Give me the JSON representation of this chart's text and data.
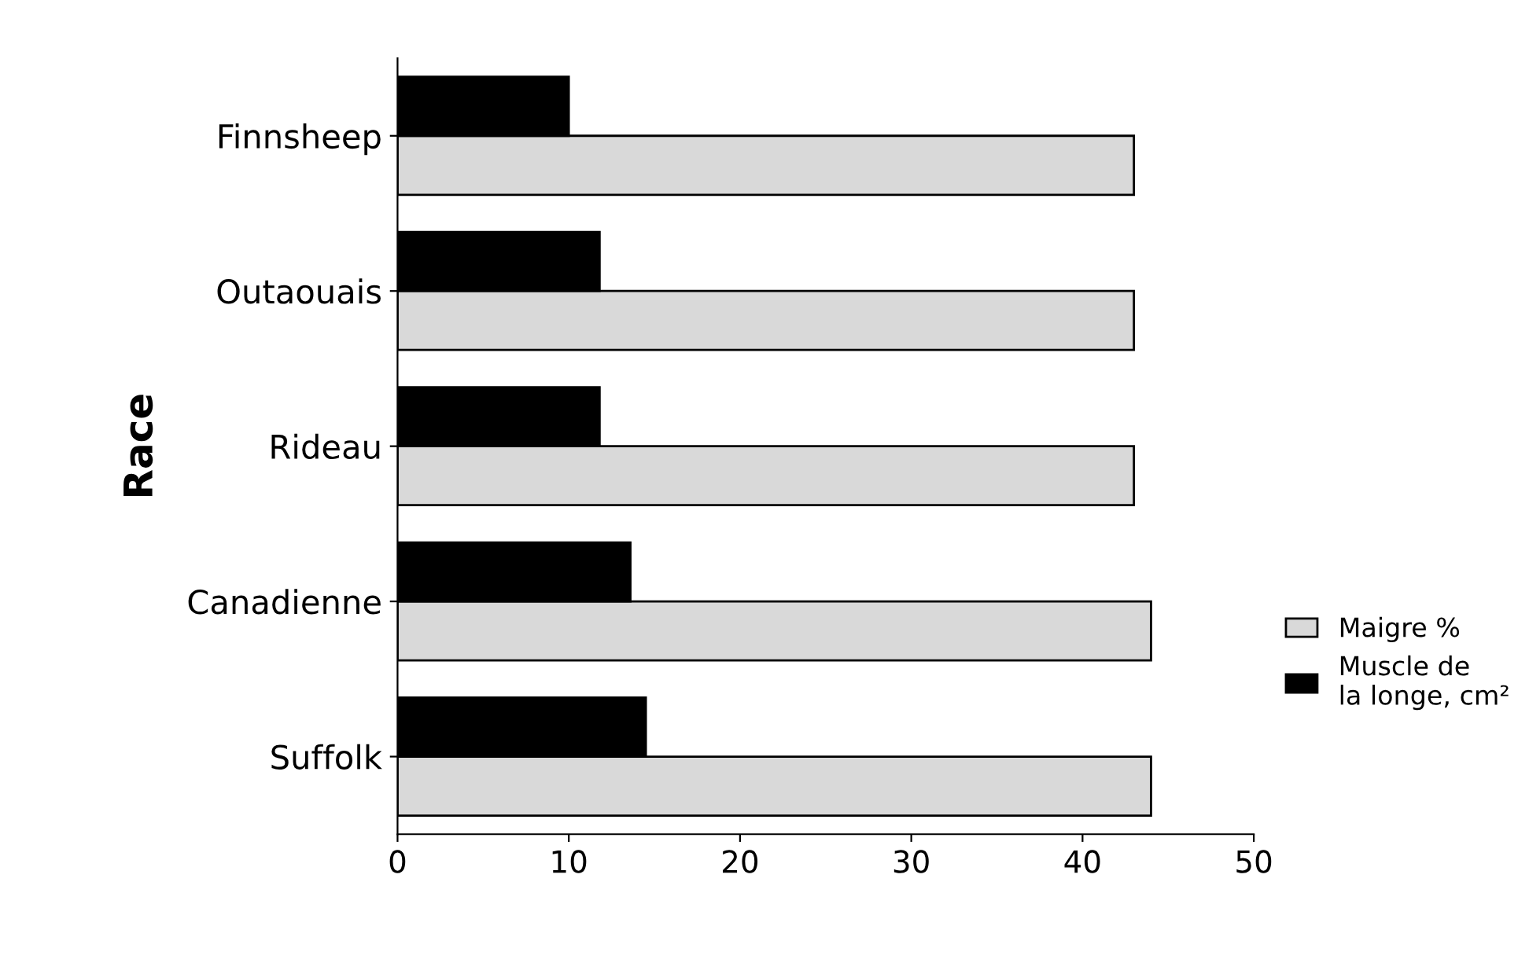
{
  "chart_data": {
    "type": "bar",
    "orientation": "horizontal",
    "ylabel": "Race",
    "categories": [
      "Finnsheep",
      "Outaouais",
      "Rideau",
      "Canadienne",
      "Suffolk"
    ],
    "series": [
      {
        "name": "Maigre %",
        "color": "#d9d9d9",
        "values": [
          43,
          43,
          43,
          44,
          44
        ]
      },
      {
        "name": "Muscle de\nla longe, cm²",
        "color": "#000000",
        "values": [
          10,
          11.8,
          11.8,
          13.6,
          14.5
        ]
      }
    ],
    "xlim": [
      0,
      50
    ],
    "xticks": [
      0,
      10,
      20,
      30,
      40,
      50
    ],
    "grid": false,
    "legend": "right"
  }
}
